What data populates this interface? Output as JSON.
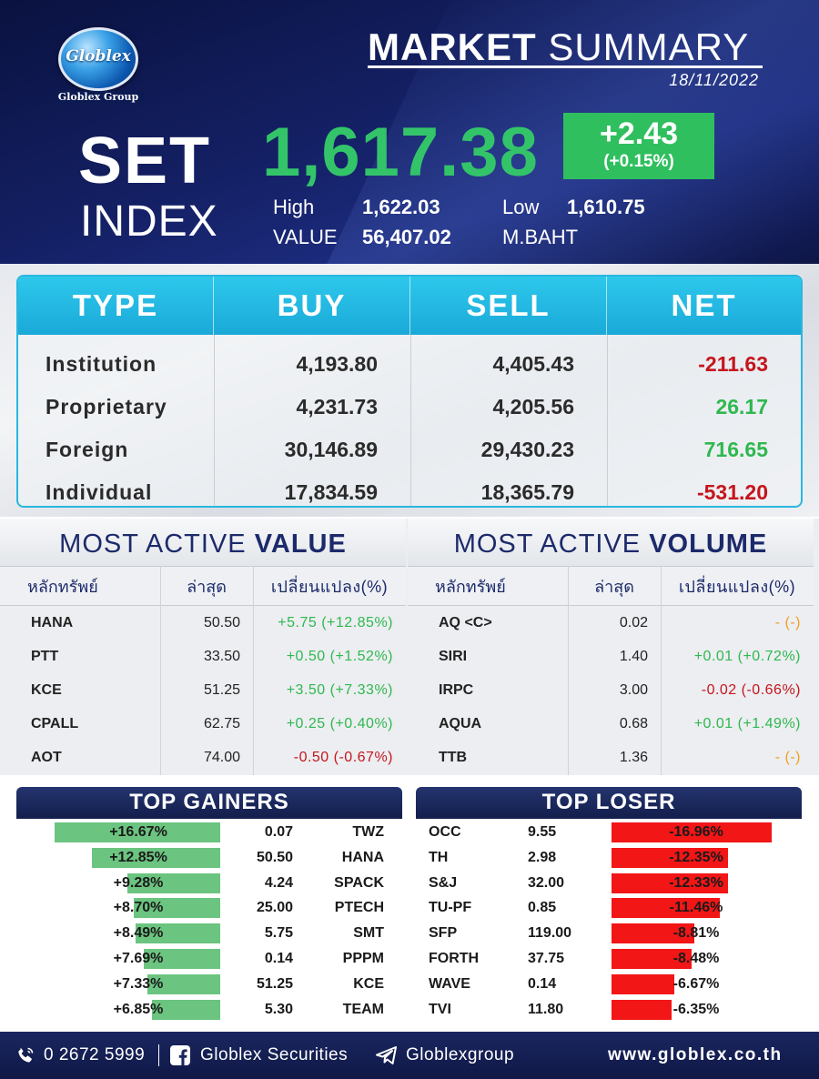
{
  "header": {
    "logo_word": "Globlex",
    "logo_group": "Globlex Group",
    "title_bold": "MARKET",
    "title_light": "SUMMARY",
    "date": "18/11/2022",
    "set_word": "SET",
    "index_word": "INDEX",
    "index_value": "1,617.38",
    "change": "+2.43",
    "change_pct": "(+0.15%)",
    "high_label": "High",
    "high_value": "1,622.03",
    "low_label": "Low",
    "low_value": "1,610.75",
    "value_label": "VALUE",
    "value_value": "56,407.02",
    "value_unit": "M.BAHT",
    "colors": {
      "up": "#33c46a",
      "change_box": "#2fbf5e"
    }
  },
  "investor": {
    "headers": [
      "TYPE",
      "BUY",
      "SELL",
      "NET"
    ],
    "rows": [
      {
        "type": "Institution",
        "buy": "4,193.80",
        "sell": "4,405.43",
        "net": "-211.63",
        "dir": "neg"
      },
      {
        "type": "Proprietary",
        "buy": "4,231.73",
        "sell": "4,205.56",
        "net": "26.17",
        "dir": "pos"
      },
      {
        "type": "Foreign",
        "buy": "30,146.89",
        "sell": "29,430.23",
        "net": "716.65",
        "dir": "pos"
      },
      {
        "type": "Individual",
        "buy": "17,834.59",
        "sell": "18,365.79",
        "net": "-531.20",
        "dir": "neg"
      }
    ]
  },
  "most_active_value": {
    "title_light": "MOST ACTIVE",
    "title_bold": "VALUE",
    "headers": [
      "หลักทรัพย์",
      "ล่าสุด",
      "เปลี่ยนแปลง(%)"
    ],
    "rows": [
      {
        "symbol": "HANA",
        "last": "50.50",
        "change": "+5.75 (+12.85%)",
        "dir": "pos"
      },
      {
        "symbol": "PTT",
        "last": "33.50",
        "change": "+0.50 (+1.52%)",
        "dir": "pos"
      },
      {
        "symbol": "KCE",
        "last": "51.25",
        "change": "+3.50 (+7.33%)",
        "dir": "pos"
      },
      {
        "symbol": "CPALL",
        "last": "62.75",
        "change": "+0.25 (+0.40%)",
        "dir": "pos"
      },
      {
        "symbol": "AOT",
        "last": "74.00",
        "change": "-0.50 (-0.67%)",
        "dir": "neg"
      }
    ]
  },
  "most_active_volume": {
    "title_light": "MOST ACTIVE",
    "title_bold": "VOLUME",
    "headers": [
      "หลักทรัพย์",
      "ล่าสุด",
      "เปลี่ยนแปลง(%)"
    ],
    "rows": [
      {
        "symbol": "AQ <C>",
        "last": "0.02",
        "change": "- (-)",
        "dir": "amber"
      },
      {
        "symbol": "SIRI",
        "last": "1.40",
        "change": "+0.01 (+0.72%)",
        "dir": "pos"
      },
      {
        "symbol": "IRPC",
        "last": "3.00",
        "change": "-0.02 (-0.66%)",
        "dir": "neg"
      },
      {
        "symbol": "AQUA",
        "last": "0.68",
        "change": "+0.01 (+1.49%)",
        "dir": "pos"
      },
      {
        "symbol": "TTB",
        "last": "1.36",
        "change": "- (-)",
        "dir": "amber"
      }
    ]
  },
  "top_gainers": {
    "title": "TOP GAINERS",
    "rows": [
      {
        "pct_label": "+16.67%",
        "pct": 16.67,
        "price": "0.07",
        "symbol": "TWZ"
      },
      {
        "pct_label": "+12.85%",
        "pct": 12.85,
        "price": "50.50",
        "symbol": "HANA"
      },
      {
        "pct_label": "+9.28%",
        "pct": 9.28,
        "price": "4.24",
        "symbol": "SPACK"
      },
      {
        "pct_label": "+8.70%",
        "pct": 8.7,
        "price": "25.00",
        "symbol": "PTECH"
      },
      {
        "pct_label": "+8.49%",
        "pct": 8.49,
        "price": "5.75",
        "symbol": "SMT"
      },
      {
        "pct_label": "+7.69%",
        "pct": 7.69,
        "price": "0.14",
        "symbol": "PPPM"
      },
      {
        "pct_label": "+7.33%",
        "pct": 7.33,
        "price": "51.25",
        "symbol": "KCE"
      },
      {
        "pct_label": "+6.85%",
        "pct": 6.85,
        "price": "5.30",
        "symbol": "TEAM"
      }
    ]
  },
  "top_loser": {
    "title": "TOP LOSER",
    "rows": [
      {
        "symbol": "OCC",
        "price": "9.55",
        "pct_label": "-16.96%",
        "pct": 16.96
      },
      {
        "symbol": "TH",
        "price": "2.98",
        "pct_label": "-12.35%",
        "pct": 12.35
      },
      {
        "symbol": "S&J",
        "price": "32.00",
        "pct_label": "-12.33%",
        "pct": 12.33
      },
      {
        "symbol": "TU-PF",
        "price": "0.85",
        "pct_label": "-11.46%",
        "pct": 11.46
      },
      {
        "symbol": "SFP",
        "price": "119.00",
        "pct_label": "-8.81%",
        "pct": 8.81
      },
      {
        "symbol": "FORTH",
        "price": "37.75",
        "pct_label": "-8.48%",
        "pct": 8.48
      },
      {
        "symbol": "WAVE",
        "price": "0.14",
        "pct_label": "-6.67%",
        "pct": 6.67
      },
      {
        "symbol": "TVI",
        "price": "11.80",
        "pct_label": "-6.35%",
        "pct": 6.35
      }
    ]
  },
  "footer": {
    "phone": "0 2672 5999",
    "facebook": "Globlex Securities",
    "telegram": "Globlexgroup",
    "website": "www.globlex.co.th",
    "icons": [
      "phone-icon",
      "facebook-icon",
      "telegram-icon"
    ]
  }
}
